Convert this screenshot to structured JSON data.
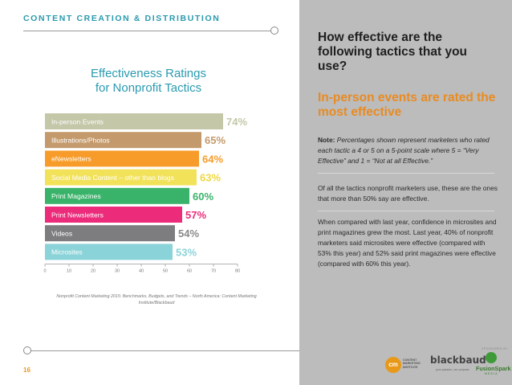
{
  "header": {
    "section_title": "CONTENT CREATION & DISTRIBUTION"
  },
  "chart_data": {
    "type": "bar",
    "orientation": "horizontal",
    "title": "Effectiveness Ratings for Nonprofit Tactics",
    "title_lines": [
      "Effectiveness Ratings",
      "for Nonprofit Tactics"
    ],
    "categories": [
      "In-person Events",
      "Illustrations/Photos",
      "eNewsletters",
      "Social Media Content – other than blogs",
      "Print Magazines",
      "Print Newsletters",
      "Videos",
      "Microsites"
    ],
    "values": [
      74,
      65,
      64,
      63,
      60,
      57,
      54,
      53
    ],
    "value_labels": [
      "74%",
      "65%",
      "64%",
      "63%",
      "60%",
      "57%",
      "54%",
      "53%"
    ],
    "colors": [
      "#c4c7a8",
      "#c49a6c",
      "#f79c2a",
      "#f2e25a",
      "#3ab36a",
      "#ec2b7b",
      "#7d7d80",
      "#8ad3d8"
    ],
    "label_colors": [
      "#c4c7a8",
      "#c49a6c",
      "#f79c2a",
      "#f0d840",
      "#3ab36a",
      "#ec2b7b",
      "#8a8a8a",
      "#8ad3d8"
    ],
    "xlim": [
      0,
      80
    ],
    "xticks": [
      "0",
      "10",
      "20",
      "30",
      "40",
      "50",
      "60",
      "70",
      "80"
    ],
    "grid": false,
    "source": "Nonprofit Content Marketing 2015: Benchmarks, Budgets, and Trends – North America: Content Marketing Institute/Blackbaud"
  },
  "page_number": "16",
  "right_panel": {
    "question": "How effective are the following tactics that you use?",
    "subheading": "In-person events are rated the most effective",
    "note_label": "Note:",
    "note_text": "Percentages shown represent marketers who rated each tactic a 4 or 5 on a 5-point scale where 5 = “Very Effective” and 1 = “Not at all Effective.”",
    "paragraph1": "Of all the tactics nonprofit marketers use, these are the ones that more than 50% say are effective.",
    "paragraph2": "When compared with last year, confidence in microsites and print magazines grew the most. Last year, 40% of nonprofit marketers said microsites were effective (compared with 53% this year) and 52% said print magazines were effective (compared with 60% this year)."
  },
  "footer": {
    "sponsored_label": "SPONSORED BY",
    "cmi_mark": "cm",
    "cmi_name": "CONTENT MARKETING INSTITUTE",
    "blackbaud_name": "blackbaud",
    "blackbaud_tagline": "your passion. our purpose.",
    "fusionspark_name": "FusionSpark",
    "fusionspark_sub": "MEDIA"
  }
}
